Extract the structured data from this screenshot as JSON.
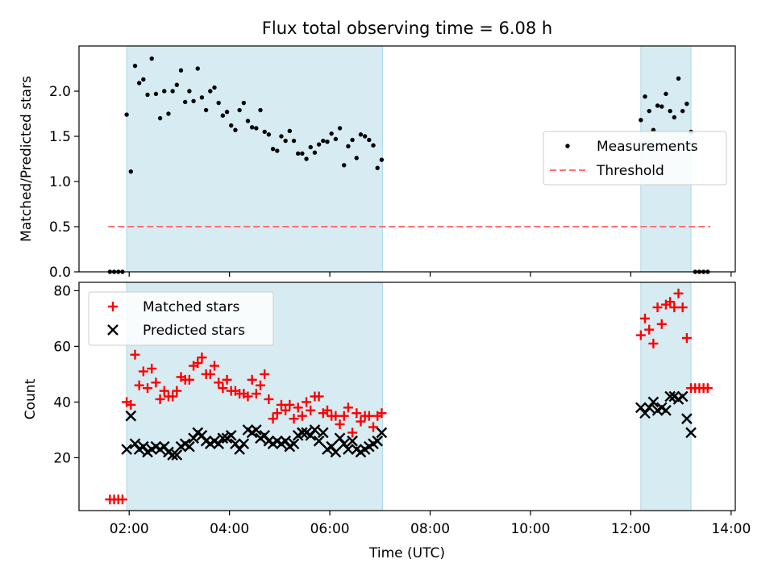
{
  "chart_data": [
    {
      "type": "scatter",
      "title": "Flux total observing time = 6.08 h",
      "xlabel": "",
      "ylabel": "Matched/Predicted stars",
      "xlim": [
        "01:00",
        "14:05"
      ],
      "ylim": [
        0,
        2.5
      ],
      "yticks": [
        0.0,
        0.5,
        1.0,
        1.5,
        2.0
      ],
      "ytick_labels": [
        "0.0",
        "0.5",
        "1.0",
        "1.5",
        "2.0"
      ],
      "grid": false,
      "legend_position": "center-right",
      "observing_windows": [
        [
          "01:57",
          "07:03"
        ],
        [
          "12:12",
          "13:12"
        ]
      ],
      "series": [
        {
          "name": "Measurements",
          "kind": "dots",
          "color": "#000000",
          "x": [
            "01:37",
            "01:42",
            "01:47",
            "01:52",
            "01:57",
            "02:02",
            "02:07",
            "02:12",
            "02:17",
            "02:22",
            "02:27",
            "02:32",
            "02:37",
            "02:42",
            "02:47",
            "02:52",
            "02:57",
            "03:02",
            "03:07",
            "03:12",
            "03:17",
            "03:22",
            "03:27",
            "03:32",
            "03:37",
            "03:42",
            "03:47",
            "03:52",
            "03:57",
            "04:02",
            "04:07",
            "04:12",
            "04:17",
            "04:22",
            "04:27",
            "04:32",
            "04:37",
            "04:42",
            "04:47",
            "04:52",
            "04:57",
            "05:02",
            "05:07",
            "05:12",
            "05:17",
            "05:22",
            "05:27",
            "05:32",
            "05:37",
            "05:42",
            "05:47",
            "05:52",
            "05:57",
            "06:02",
            "06:07",
            "06:12",
            "06:17",
            "06:22",
            "06:27",
            "06:32",
            "06:37",
            "06:42",
            "06:47",
            "06:52",
            "06:57",
            "07:02",
            "12:12",
            "12:17",
            "12:22",
            "12:27",
            "12:32",
            "12:37",
            "12:42",
            "12:47",
            "12:52",
            "12:57",
            "13:02",
            "13:07",
            "13:12",
            "13:17",
            "13:22",
            "13:27",
            "13:32"
          ],
          "y": [
            0.0,
            0.0,
            0.0,
            0.0,
            1.74,
            1.11,
            2.28,
            2.09,
            2.13,
            1.96,
            2.36,
            1.97,
            1.7,
            2.0,
            1.75,
            2.0,
            2.07,
            2.23,
            1.88,
            2.0,
            1.89,
            2.25,
            1.93,
            1.79,
            2.0,
            2.04,
            1.87,
            1.73,
            1.77,
            1.62,
            1.57,
            1.79,
            1.87,
            1.67,
            1.6,
            1.59,
            1.79,
            1.55,
            1.52,
            1.36,
            1.34,
            1.5,
            1.45,
            1.56,
            1.45,
            1.31,
            1.31,
            1.25,
            1.38,
            1.32,
            1.41,
            1.45,
            1.44,
            1.53,
            1.47,
            1.59,
            1.18,
            1.39,
            1.46,
            1.26,
            1.52,
            1.5,
            1.46,
            1.4,
            1.15,
            1.24,
            1.68,
            1.94,
            1.78,
            1.57,
            1.84,
            1.83,
            1.97,
            1.78,
            1.71,
            2.14,
            1.78,
            1.86,
            1.55,
            0.0,
            0.0,
            0.0,
            0.0
          ]
        },
        {
          "name": "Threshold",
          "kind": "dashed-line",
          "color": "#ff7070",
          "x": [
            "01:35",
            "13:35"
          ],
          "y": [
            0.5,
            0.5
          ]
        }
      ]
    },
    {
      "type": "scatter",
      "title": "",
      "xlabel": "Time (UTC)",
      "ylabel": "Count",
      "xlim": [
        "01:00",
        "14:05"
      ],
      "ylim": [
        1,
        83
      ],
      "yticks": [
        20,
        40,
        60,
        80
      ],
      "ytick_labels": [
        "20",
        "40",
        "60",
        "80"
      ],
      "xticks": [
        "02:00",
        "04:00",
        "06:00",
        "08:00",
        "10:00",
        "12:00",
        "14:00"
      ],
      "xtick_labels": [
        "02:00",
        "04:00",
        "06:00",
        "08:00",
        "10:00",
        "12:00",
        "14:00"
      ],
      "grid": false,
      "legend_position": "top-left",
      "observing_windows": [
        [
          "01:57",
          "07:03"
        ],
        [
          "12:12",
          "13:12"
        ]
      ],
      "series": [
        {
          "name": "Matched stars",
          "kind": "plus",
          "color": "#ff0000",
          "x": [
            "01:37",
            "01:42",
            "01:47",
            "01:52",
            "01:57",
            "02:02",
            "02:07",
            "02:12",
            "02:17",
            "02:22",
            "02:27",
            "02:32",
            "02:37",
            "02:42",
            "02:47",
            "02:52",
            "02:57",
            "03:02",
            "03:07",
            "03:12",
            "03:17",
            "03:22",
            "03:27",
            "03:32",
            "03:37",
            "03:42",
            "03:47",
            "03:52",
            "03:57",
            "04:02",
            "04:07",
            "04:12",
            "04:17",
            "04:22",
            "04:27",
            "04:32",
            "04:37",
            "04:42",
            "04:47",
            "04:52",
            "04:57",
            "05:02",
            "05:07",
            "05:12",
            "05:17",
            "05:22",
            "05:27",
            "05:32",
            "05:37",
            "05:42",
            "05:47",
            "05:52",
            "05:57",
            "06:02",
            "06:07",
            "06:12",
            "06:17",
            "06:22",
            "06:27",
            "06:32",
            "06:37",
            "06:42",
            "06:47",
            "06:52",
            "06:57",
            "07:02",
            "12:12",
            "12:17",
            "12:22",
            "12:27",
            "12:32",
            "12:37",
            "12:42",
            "12:47",
            "12:52",
            "12:57",
            "13:02",
            "13:07",
            "13:12",
            "13:17",
            "13:22",
            "13:27",
            "13:32"
          ],
          "y": [
            5,
            5,
            5,
            5,
            40,
            39,
            57,
            46,
            51,
            45,
            52,
            47,
            41,
            44,
            42,
            42,
            44,
            49,
            48,
            48,
            53,
            54,
            56,
            50,
            50,
            53,
            47,
            45,
            48,
            44,
            44,
            43,
            43,
            42,
            48,
            43,
            46,
            50,
            41,
            34,
            36,
            39,
            37,
            39,
            34,
            38,
            35,
            40,
            37,
            42,
            42,
            36,
            37,
            35,
            35,
            32,
            35,
            38,
            29,
            36,
            33,
            35,
            35,
            31,
            35,
            36,
            64,
            70,
            66,
            61,
            74,
            68,
            75,
            76,
            74,
            79,
            74,
            63,
            45,
            45,
            45,
            45,
            45
          ]
        },
        {
          "name": "Predicted stars",
          "kind": "x",
          "color": "#000000",
          "x": [
            "01:57",
            "02:02",
            "02:07",
            "02:12",
            "02:17",
            "02:22",
            "02:27",
            "02:32",
            "02:37",
            "02:42",
            "02:47",
            "02:52",
            "02:57",
            "03:02",
            "03:07",
            "03:12",
            "03:17",
            "03:22",
            "03:27",
            "03:32",
            "03:37",
            "03:42",
            "03:47",
            "03:52",
            "03:57",
            "04:02",
            "04:07",
            "04:12",
            "04:17",
            "04:22",
            "04:27",
            "04:32",
            "04:37",
            "04:42",
            "04:47",
            "04:52",
            "04:57",
            "05:02",
            "05:07",
            "05:12",
            "05:17",
            "05:22",
            "05:27",
            "05:32",
            "05:37",
            "05:42",
            "05:47",
            "05:52",
            "05:57",
            "06:02",
            "06:07",
            "06:12",
            "06:17",
            "06:22",
            "06:27",
            "06:32",
            "06:37",
            "06:42",
            "06:47",
            "06:52",
            "06:57",
            "07:02",
            "12:12",
            "12:17",
            "12:22",
            "12:27",
            "12:32",
            "12:37",
            "12:42",
            "12:47",
            "12:52",
            "12:57",
            "13:02",
            "13:07",
            "13:12"
          ],
          "y": [
            23,
            35,
            25,
            23,
            24,
            22,
            23,
            24,
            23,
            24,
            22,
            21,
            21,
            24,
            25,
            24,
            27,
            29,
            28,
            26,
            25,
            26,
            25,
            27,
            27,
            28,
            25,
            23,
            25,
            30,
            29,
            30,
            27,
            28,
            26,
            25,
            26,
            25,
            26,
            24,
            25,
            28,
            29,
            29,
            28,
            30,
            26,
            29,
            23,
            24,
            22,
            27,
            25,
            23,
            26,
            23,
            22,
            23,
            24,
            25,
            26,
            29,
            38,
            36,
            38,
            40,
            37,
            38,
            37,
            42,
            42,
            41,
            42,
            34,
            29
          ]
        }
      ]
    }
  ]
}
